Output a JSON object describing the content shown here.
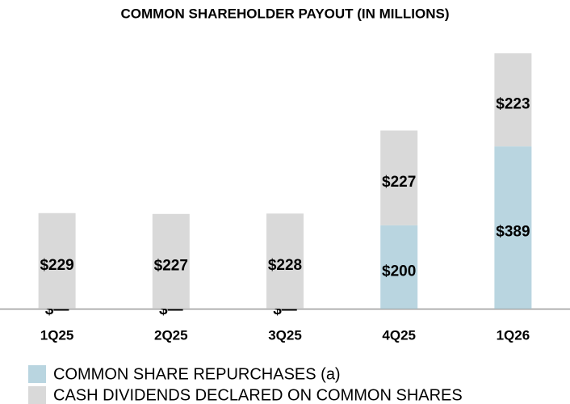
{
  "chart_data": {
    "type": "stacked_bar",
    "title": "COMMON SHAREHOLDER PAYOUT (IN MILLIONS)",
    "categories": [
      "1Q25",
      "2Q25",
      "3Q25",
      "4Q25",
      "1Q26"
    ],
    "series": [
      {
        "name": "COMMON SHARE REPURCHASES (a)",
        "color": "#b9d5e0",
        "values": [
          0,
          0,
          0,
          200,
          389
        ],
        "value_labels": [
          "$—",
          "$—",
          "$—",
          "$200",
          "$389"
        ]
      },
      {
        "name": "CASH DIVIDENDS DECLARED ON COMMON SHARES",
        "color": "#d9d9d9",
        "values": [
          229,
          227,
          228,
          227,
          223
        ],
        "value_labels": [
          "$229",
          "$227",
          "$228",
          "$227",
          "$223"
        ]
      }
    ]
  }
}
